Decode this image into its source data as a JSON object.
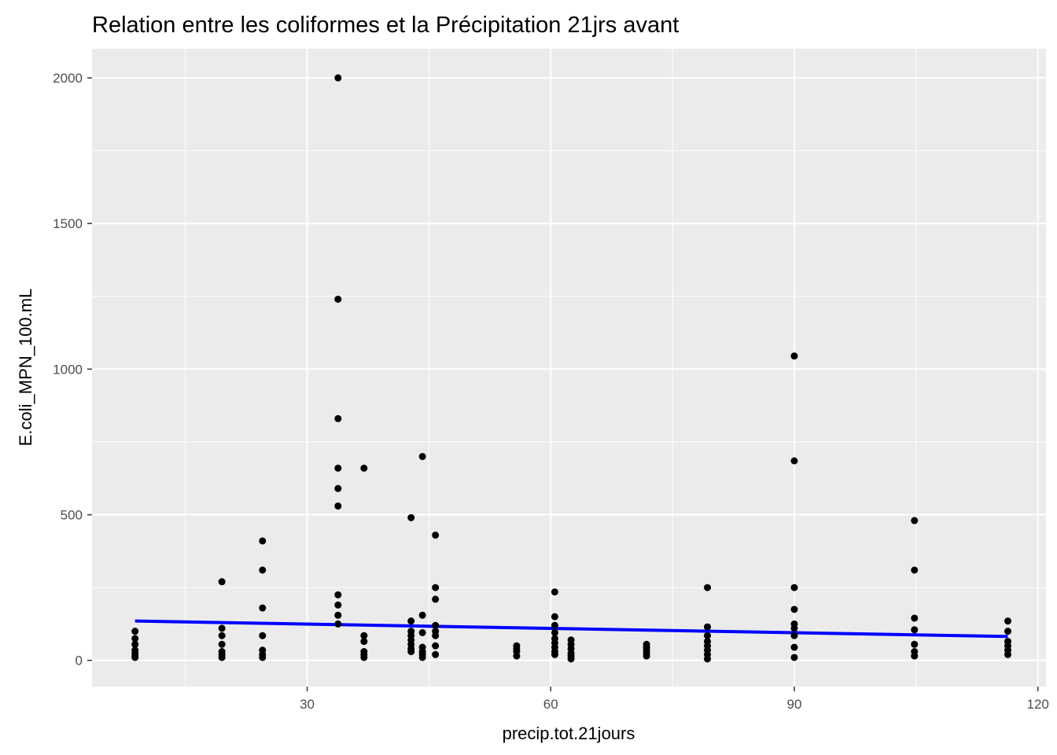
{
  "chart_data": {
    "type": "scatter",
    "title": "Relation entre les coliformes et la Précipitation 21jrs avant",
    "xlabel": "precip.tot.21jours",
    "ylabel": "E.coli_MPN_100.mL",
    "xlim": [
      3.5,
      121
    ],
    "ylim": [
      -90,
      2100
    ],
    "x_ticks": [
      30,
      60,
      90,
      120
    ],
    "x_tick_labels": [
      "30",
      "60",
      "90",
      "120"
    ],
    "y_ticks": [
      0,
      500,
      1000,
      1500,
      2000
    ],
    "y_tick_labels": [
      "0",
      "500",
      "1000",
      "1500",
      "2000"
    ],
    "grid": true,
    "background": "#ebebeb",
    "point_color": "#000000",
    "trend_color": "#0000ff",
    "trend_line": {
      "x": [
        8.8,
        116.3
      ],
      "y": [
        135,
        82
      ]
    },
    "points": [
      {
        "x": 8.8,
        "y": 100
      },
      {
        "x": 8.8,
        "y": 75
      },
      {
        "x": 8.8,
        "y": 55
      },
      {
        "x": 8.8,
        "y": 35
      },
      {
        "x": 8.8,
        "y": 25
      },
      {
        "x": 8.8,
        "y": 15
      },
      {
        "x": 8.8,
        "y": 10
      },
      {
        "x": 19.5,
        "y": 270
      },
      {
        "x": 19.5,
        "y": 110
      },
      {
        "x": 19.5,
        "y": 85
      },
      {
        "x": 19.5,
        "y": 55
      },
      {
        "x": 19.5,
        "y": 30
      },
      {
        "x": 19.5,
        "y": 20
      },
      {
        "x": 19.5,
        "y": 10
      },
      {
        "x": 24.5,
        "y": 410
      },
      {
        "x": 24.5,
        "y": 310
      },
      {
        "x": 24.5,
        "y": 180
      },
      {
        "x": 24.5,
        "y": 85
      },
      {
        "x": 24.5,
        "y": 35
      },
      {
        "x": 24.5,
        "y": 20
      },
      {
        "x": 24.5,
        "y": 10
      },
      {
        "x": 33.8,
        "y": 2000
      },
      {
        "x": 33.8,
        "y": 1240
      },
      {
        "x": 33.8,
        "y": 830
      },
      {
        "x": 33.8,
        "y": 660
      },
      {
        "x": 33.8,
        "y": 590
      },
      {
        "x": 33.8,
        "y": 530
      },
      {
        "x": 33.8,
        "y": 225
      },
      {
        "x": 33.8,
        "y": 190
      },
      {
        "x": 33.8,
        "y": 155
      },
      {
        "x": 33.8,
        "y": 125
      },
      {
        "x": 37.0,
        "y": 660
      },
      {
        "x": 37.0,
        "y": 85
      },
      {
        "x": 37.0,
        "y": 65
      },
      {
        "x": 37.0,
        "y": 30
      },
      {
        "x": 37.0,
        "y": 20
      },
      {
        "x": 37.0,
        "y": 10
      },
      {
        "x": 42.8,
        "y": 490
      },
      {
        "x": 42.8,
        "y": 135
      },
      {
        "x": 42.8,
        "y": 100
      },
      {
        "x": 42.8,
        "y": 85
      },
      {
        "x": 42.8,
        "y": 70
      },
      {
        "x": 42.8,
        "y": 55
      },
      {
        "x": 42.8,
        "y": 40
      },
      {
        "x": 42.8,
        "y": 30
      },
      {
        "x": 44.2,
        "y": 700
      },
      {
        "x": 44.2,
        "y": 155
      },
      {
        "x": 44.2,
        "y": 95
      },
      {
        "x": 44.2,
        "y": 45
      },
      {
        "x": 44.2,
        "y": 30
      },
      {
        "x": 44.2,
        "y": 20
      },
      {
        "x": 44.2,
        "y": 10
      },
      {
        "x": 45.8,
        "y": 430
      },
      {
        "x": 45.8,
        "y": 250
      },
      {
        "x": 45.8,
        "y": 210
      },
      {
        "x": 45.8,
        "y": 120
      },
      {
        "x": 45.8,
        "y": 100
      },
      {
        "x": 45.8,
        "y": 85
      },
      {
        "x": 45.8,
        "y": 50
      },
      {
        "x": 45.8,
        "y": 20
      },
      {
        "x": 55.8,
        "y": 50
      },
      {
        "x": 55.8,
        "y": 40
      },
      {
        "x": 55.8,
        "y": 30
      },
      {
        "x": 55.8,
        "y": 15
      },
      {
        "x": 60.5,
        "y": 235
      },
      {
        "x": 60.5,
        "y": 150
      },
      {
        "x": 60.5,
        "y": 120
      },
      {
        "x": 60.5,
        "y": 95
      },
      {
        "x": 60.5,
        "y": 75
      },
      {
        "x": 60.5,
        "y": 60
      },
      {
        "x": 60.5,
        "y": 45
      },
      {
        "x": 60.5,
        "y": 30
      },
      {
        "x": 60.5,
        "y": 20
      },
      {
        "x": 62.5,
        "y": 70
      },
      {
        "x": 62.5,
        "y": 55
      },
      {
        "x": 62.5,
        "y": 40
      },
      {
        "x": 62.5,
        "y": 25
      },
      {
        "x": 62.5,
        "y": 15
      },
      {
        "x": 62.5,
        "y": 5
      },
      {
        "x": 71.8,
        "y": 55
      },
      {
        "x": 71.8,
        "y": 45
      },
      {
        "x": 71.8,
        "y": 35
      },
      {
        "x": 71.8,
        "y": 25
      },
      {
        "x": 71.8,
        "y": 15
      },
      {
        "x": 79.3,
        "y": 250
      },
      {
        "x": 79.3,
        "y": 115
      },
      {
        "x": 79.3,
        "y": 85
      },
      {
        "x": 79.3,
        "y": 65
      },
      {
        "x": 79.3,
        "y": 50
      },
      {
        "x": 79.3,
        "y": 35
      },
      {
        "x": 79.3,
        "y": 20
      },
      {
        "x": 79.3,
        "y": 5
      },
      {
        "x": 90.0,
        "y": 1045
      },
      {
        "x": 90.0,
        "y": 685
      },
      {
        "x": 90.0,
        "y": 250
      },
      {
        "x": 90.0,
        "y": 175
      },
      {
        "x": 90.0,
        "y": 125
      },
      {
        "x": 90.0,
        "y": 110
      },
      {
        "x": 90.0,
        "y": 85
      },
      {
        "x": 90.0,
        "y": 45
      },
      {
        "x": 90.0,
        "y": 10
      },
      {
        "x": 104.8,
        "y": 480
      },
      {
        "x": 104.8,
        "y": 310
      },
      {
        "x": 104.8,
        "y": 145
      },
      {
        "x": 104.8,
        "y": 105
      },
      {
        "x": 104.8,
        "y": 55
      },
      {
        "x": 104.8,
        "y": 30
      },
      {
        "x": 104.8,
        "y": 15
      },
      {
        "x": 116.3,
        "y": 135
      },
      {
        "x": 116.3,
        "y": 100
      },
      {
        "x": 116.3,
        "y": 65
      },
      {
        "x": 116.3,
        "y": 50
      },
      {
        "x": 116.3,
        "y": 35
      },
      {
        "x": 116.3,
        "y": 20
      }
    ]
  }
}
